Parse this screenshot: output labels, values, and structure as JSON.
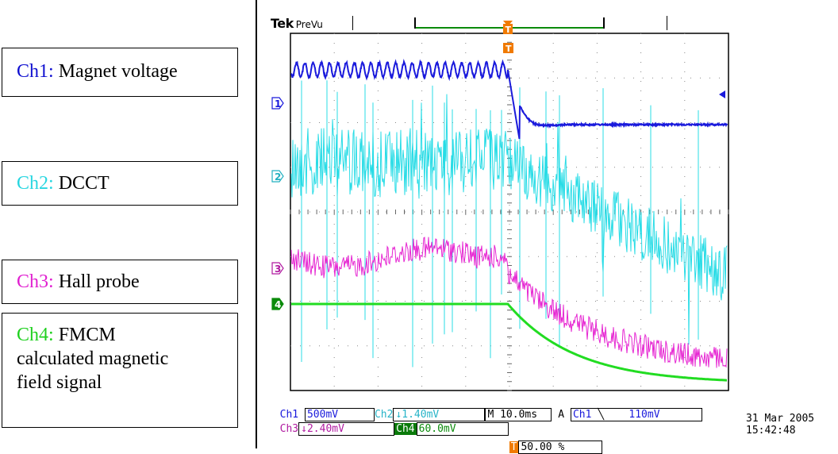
{
  "labels": [
    {
      "name": "Ch1:",
      "desc": "Magnet voltage",
      "color": "#1010d0"
    },
    {
      "name": "Ch2:",
      "desc": "DCCT",
      "color": "#28d6e0"
    },
    {
      "name": "Ch3:",
      "desc": "Hall probe",
      "color": "#e020d0"
    },
    {
      "name": "Ch4:",
      "desc": "FMCM calculated magnetic field signal",
      "desc_lines": [
        "FMCM",
        "calculated magnetic",
        "field signal"
      ],
      "color": "#20d020"
    }
  ],
  "scope": {
    "brand": "Tek",
    "mode": "PreVu",
    "trigger_marker": "T",
    "channel_markers": [
      "1",
      "2",
      "3",
      "4"
    ],
    "status": {
      "ch1_name": "Ch1",
      "ch1_scale": "500mV",
      "ch1_bw": "B_W",
      "ch2_name": "Ch2",
      "ch2_scale": "↓1.40mV",
      "ch2_bw": "∿B_W",
      "timebase": "M 10.0ms",
      "trig_mode": "A",
      "trig_source": "Ch1",
      "trig_slope": "╲",
      "trig_level": "110mV",
      "ch3_name": "Ch3",
      "ch3_scale": "↓2.40mV",
      "ch3_bw": "∿B_W",
      "ch4_name": "Ch4",
      "ch4_scale": "60.0mV",
      "ch4_bw": "∿B_W",
      "trig_position": "50.00 %"
    },
    "date": "31 Mar  2005",
    "time": "15:42:48",
    "colors": {
      "ch1": "#1a1adc",
      "ch2": "#28dce6",
      "ch3": "#e626d2",
      "ch4": "#22dc22",
      "trig": "#f07a00"
    }
  }
}
